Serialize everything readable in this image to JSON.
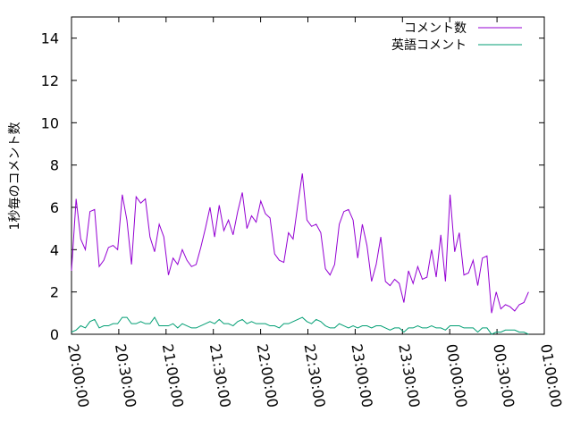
{
  "chart_data": {
    "type": "line",
    "title": "",
    "xlabel": "",
    "ylabel": "1秒毎のコメント数",
    "ylim": [
      0,
      15
    ],
    "x_start": "20:00:00",
    "x_end": "01:00:00",
    "x_ticks": [
      "20:00:00",
      "20:30:00",
      "21:00:00",
      "21:30:00",
      "22:00:00",
      "22:30:00",
      "23:00:00",
      "23:30:00",
      "00:00:00",
      "00:30:00",
      "01:00:00"
    ],
    "y_ticks": [
      "0",
      "2",
      "4",
      "6",
      "8",
      "10",
      "12",
      "14"
    ],
    "y_tick_values": [
      0,
      2,
      4,
      6,
      8,
      10,
      12,
      14
    ],
    "grid": false,
    "legend_position": "top-right",
    "series": [
      {
        "name": "コメント数",
        "color": "#9400d3",
        "values": [
          3.0,
          6.4,
          4.5,
          4.0,
          5.8,
          5.9,
          3.2,
          3.5,
          4.1,
          4.2,
          4.0,
          6.6,
          5.4,
          3.3,
          6.5,
          6.2,
          6.4,
          4.6,
          3.9,
          5.2,
          4.6,
          2.8,
          3.6,
          3.3,
          4.0,
          3.5,
          3.2,
          3.3,
          4.1,
          5.0,
          6.0,
          4.6,
          6.1,
          4.9,
          5.4,
          4.7,
          5.8,
          6.7,
          5.0,
          5.6,
          5.3,
          6.3,
          5.7,
          5.5,
          3.8,
          3.5,
          3.4,
          4.8,
          4.5,
          6.1,
          7.6,
          5.4,
          5.1,
          5.2,
          4.8,
          3.1,
          2.8,
          3.3,
          5.2,
          5.8,
          5.9,
          5.4,
          3.6,
          5.2,
          4.2,
          2.5,
          3.3,
          4.6,
          2.5,
          2.3,
          2.6,
          2.4,
          1.5,
          3.0,
          2.4,
          3.2,
          2.6,
          2.7,
          4.0,
          2.7,
          4.7,
          2.5,
          6.6,
          3.9,
          4.8,
          2.8,
          2.9,
          3.5,
          2.3,
          3.6,
          3.7,
          1.0,
          2.0,
          1.2,
          1.4,
          1.3,
          1.1,
          1.4,
          1.5,
          2.0
        ],
        "end_x": "00:50:00"
      },
      {
        "name": "英語コメント",
        "color": "#009e73",
        "values": [
          0.1,
          0.2,
          0.4,
          0.3,
          0.6,
          0.7,
          0.3,
          0.4,
          0.4,
          0.5,
          0.5,
          0.8,
          0.8,
          0.5,
          0.5,
          0.6,
          0.5,
          0.5,
          0.8,
          0.4,
          0.4,
          0.4,
          0.5,
          0.3,
          0.5,
          0.4,
          0.3,
          0.3,
          0.4,
          0.5,
          0.6,
          0.5,
          0.7,
          0.5,
          0.5,
          0.4,
          0.6,
          0.7,
          0.5,
          0.6,
          0.5,
          0.5,
          0.5,
          0.4,
          0.4,
          0.3,
          0.5,
          0.5,
          0.6,
          0.7,
          0.8,
          0.6,
          0.5,
          0.7,
          0.6,
          0.4,
          0.3,
          0.3,
          0.5,
          0.4,
          0.3,
          0.4,
          0.3,
          0.4,
          0.4,
          0.3,
          0.4,
          0.4,
          0.3,
          0.2,
          0.3,
          0.3,
          0.1,
          0.3,
          0.3,
          0.4,
          0.3,
          0.3,
          0.4,
          0.3,
          0.3,
          0.2,
          0.4,
          0.4,
          0.4,
          0.3,
          0.3,
          0.3,
          0.1,
          0.3,
          0.3,
          0.0,
          0.1,
          0.1,
          0.2,
          0.2,
          0.2,
          0.1,
          0.1,
          0.0
        ],
        "end_x": "00:50:00"
      }
    ]
  }
}
